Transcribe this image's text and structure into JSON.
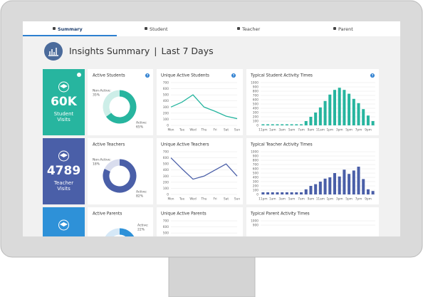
{
  "tabs": [
    "Summary",
    "Student",
    "Teacher",
    "Parent"
  ],
  "header": {
    "title": "Insights Summary",
    "divider": "|",
    "period": "Last 7 Days"
  },
  "help_icon": "?",
  "rows": [
    {
      "help": true,
      "stat": {
        "value": "60K",
        "label": [
          "Student",
          "Visits"
        ],
        "color": "#27b59f"
      },
      "donut": {
        "title": "Active Students",
        "labels": [
          "Non-Active:",
          "Active:"
        ],
        "values": [
          35,
          65
        ],
        "value_labels": [
          "35%",
          "65%"
        ],
        "colors": [
          "#cdeee8",
          "#27b59f"
        ]
      },
      "line": {
        "type": "line",
        "title": "Unique Active Students",
        "categories": [
          "Mon",
          "Tue",
          "Wed",
          "Thu",
          "Fri",
          "Sat",
          "Sun"
        ],
        "values": [
          300,
          380,
          500,
          300,
          230,
          150,
          110
        ],
        "color": "#27b59f",
        "ylim": [
          0,
          700
        ],
        "yticks": [
          0,
          100,
          200,
          300,
          400,
          500,
          600,
          700
        ],
        "grid": true
      },
      "bars": {
        "type": "bar",
        "title": "Typical Student Activity Times",
        "categories": [
          "11pm",
          null,
          "1am",
          null,
          "3am",
          null,
          "5am",
          null,
          "7am",
          null,
          "9am",
          null,
          "11am",
          null,
          "1pm",
          null,
          "3pm",
          null,
          "5pm",
          null,
          "7pm",
          null,
          "9pm",
          null
        ],
        "values": [
          25,
          25,
          25,
          25,
          25,
          25,
          25,
          25,
          25,
          100,
          200,
          300,
          420,
          570,
          720,
          830,
          880,
          830,
          740,
          620,
          520,
          380,
          230,
          100
        ],
        "color": "#27b59f",
        "ylim": [
          0,
          1000
        ],
        "yticks": [
          0,
          100,
          200,
          300,
          400,
          500,
          600,
          700,
          800,
          900,
          1000
        ],
        "grid": true
      }
    },
    {
      "help": false,
      "stat": {
        "value": "4789",
        "label": [
          "Teacher",
          "Visits"
        ],
        "color": "#4a5fa8"
      },
      "donut": {
        "title": "Active Teachers",
        "labels": [
          "Non-Active:",
          "Active:"
        ],
        "values": [
          18,
          82
        ],
        "value_labels": [
          "18%",
          "82%"
        ],
        "colors": [
          "#d9ddee",
          "#4a5fa8"
        ]
      },
      "line": {
        "type": "line",
        "title": "Unique Active Teachers",
        "categories": [
          "Mon",
          "Tue",
          "Wed",
          "Thu",
          "Fri",
          "Sat",
          "Sun"
        ],
        "values": [
          600,
          420,
          250,
          300,
          400,
          500,
          300
        ],
        "color": "#4a5fa8",
        "ylim": [
          0,
          700
        ],
        "yticks": [
          0,
          100,
          200,
          300,
          400,
          500,
          600,
          700
        ],
        "grid": true
      },
      "bars": {
        "type": "bar",
        "title": "Typical  Teacher Activity Times",
        "categories": [
          "11pm",
          null,
          "1am",
          null,
          "3am",
          null,
          "5am",
          null,
          "7am",
          null,
          "9am",
          null,
          "11am",
          null,
          "1pm",
          null,
          "3pm",
          null,
          "5pm",
          null,
          "7pm",
          null,
          "9pm",
          null
        ],
        "values": [
          50,
          50,
          50,
          50,
          50,
          50,
          50,
          50,
          50,
          120,
          200,
          240,
          300,
          370,
          400,
          500,
          420,
          580,
          480,
          560,
          650,
          360,
          120,
          80
        ],
        "color": "#4a5fa8",
        "ylim": [
          0,
          1000
        ],
        "yticks": [
          0,
          100,
          200,
          300,
          400,
          500,
          600,
          700,
          800,
          900,
          1000
        ],
        "grid": true
      }
    },
    {
      "help": false,
      "stat": {
        "color": "#2e91d8"
      },
      "donut": {
        "title": "Active Parents",
        "labels": [
          "Active:"
        ],
        "values": [
          22
        ],
        "value_labels": [
          "22%"
        ],
        "colors": [
          "#2e91d8"
        ],
        "track": "#d5e8f7",
        "clockwise": true
      },
      "line": {
        "type": "line",
        "title": "Unique Active Parents",
        "ylim": [
          0,
          700
        ],
        "yticks": [
          500,
          600,
          700
        ],
        "grid": true
      },
      "bars": {
        "type": "bar",
        "title": "Typical Parent Activity Times",
        "ylim": [
          0,
          1000
        ],
        "yticks": [
          900,
          1000
        ],
        "grid": true
      }
    }
  ]
}
